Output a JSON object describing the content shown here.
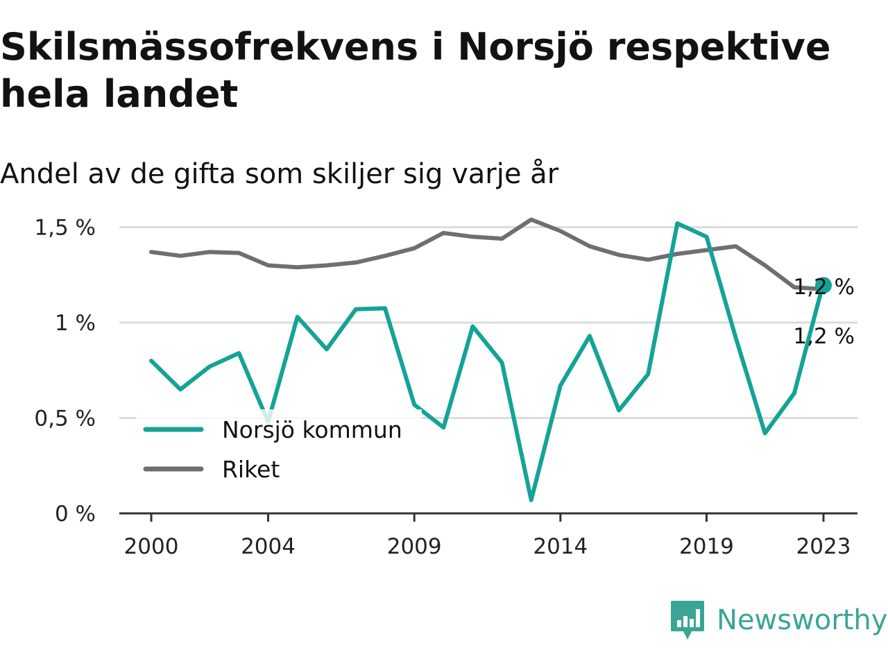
{
  "title": "Skilsmässofrekvens i Norsjö respektive hela landet",
  "subtitle": "Andel av de gifta som skiljer sig varje år",
  "brand": {
    "name": "Newsworthy",
    "icon": "newsworthy-logo-icon",
    "color": "#3aa597"
  },
  "chart_data": {
    "type": "line",
    "x": [
      2000,
      2001,
      2002,
      2003,
      2004,
      2005,
      2006,
      2007,
      2008,
      2009,
      2010,
      2011,
      2012,
      2013,
      2014,
      2015,
      2016,
      2017,
      2018,
      2019,
      2020,
      2021,
      2022,
      2023
    ],
    "x_ticks": [
      "2000",
      "2004",
      "2009",
      "2014",
      "2019",
      "2023"
    ],
    "y_ticks": [
      "0 %",
      "0,5 %",
      "1 %",
      "1,5 %"
    ],
    "y_tick_values": [
      0,
      0.5,
      1,
      1.5
    ],
    "ylim": [
      0,
      1.6
    ],
    "grid": true,
    "legend_position": "bottom-left",
    "series": [
      {
        "name": "Norsjö kommun",
        "color": "#14a396",
        "values": [
          0.8,
          0.65,
          0.77,
          0.84,
          0.48,
          1.03,
          0.86,
          1.07,
          1.075,
          0.57,
          0.45,
          0.98,
          0.79,
          0.07,
          0.67,
          0.93,
          0.54,
          0.73,
          1.52,
          1.45,
          0.92,
          0.42,
          0.63,
          1.21
        ],
        "end_label": "1,2 %"
      },
      {
        "name": "Riket",
        "color": "#6f6e73",
        "values": [
          1.37,
          1.35,
          1.37,
          1.365,
          1.3,
          1.29,
          1.3,
          1.315,
          1.35,
          1.39,
          1.47,
          1.45,
          1.44,
          1.54,
          1.48,
          1.4,
          1.355,
          1.33,
          1.36,
          1.38,
          1.4,
          1.3,
          1.185,
          1.175
        ],
        "end_label": "1,2 %"
      }
    ]
  }
}
